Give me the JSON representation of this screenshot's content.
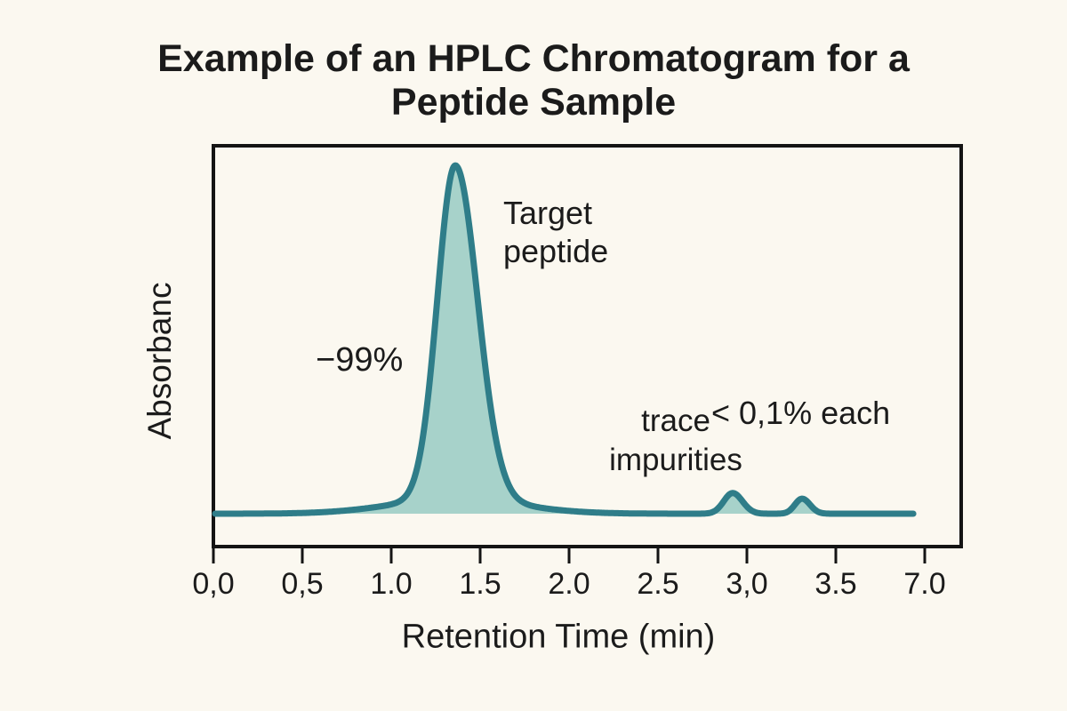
{
  "chart_data": {
    "type": "line",
    "title": "Example of an HPLC Chromatogram for a Peptide Sample",
    "xlabel": "Retention Time (min)",
    "ylabel": "Absorbanc",
    "x_tick_labels": [
      "0,0",
      "0,5",
      "1.0",
      "1.5",
      "2.0",
      "2.5",
      "3,0",
      "3.5",
      "7.0"
    ],
    "x_tick_values": [
      0,
      0.5,
      1.0,
      1.5,
      2.0,
      2.5,
      3.0,
      3.5,
      7.0
    ],
    "x_range_min": [
      0,
      6.55
    ],
    "grid": false,
    "legend": false,
    "annotations": {
      "target_peptide": "Target peptide",
      "purity": "−99%",
      "trace_impurities": "trace impurities",
      "impurity_amount": "< 0,1% each"
    },
    "peaks": [
      {
        "name": "Target peptide",
        "retention_time_min": 1.36,
        "relative_height": 1.0,
        "sigma_left_min": 0.1,
        "sigma_right_min": 0.125,
        "tail_height": 0.045,
        "tail_sigma_min": 0.35,
        "area_label": "−99%"
      },
      {
        "name": "trace impurity 1",
        "retention_time_min": 2.92,
        "relative_height": 0.062,
        "sigma_left_min": 0.05,
        "sigma_right_min": 0.055,
        "tail_height": 0,
        "tail_sigma_min": 1,
        "area_label": "< 0,1%"
      },
      {
        "name": "trace impurity 2",
        "retention_time_min": 3.31,
        "relative_height": 0.045,
        "sigma_left_min": 0.04,
        "sigma_right_min": 0.045,
        "tail_height": 0,
        "tail_sigma_min": 1,
        "area_label": "< 0,1%"
      }
    ],
    "colors": {
      "line": "#2f7d89",
      "fill": "#a7d2ca",
      "axis": "#141414",
      "text": "#1b1b1b",
      "background": "#fbf8f0"
    }
  }
}
